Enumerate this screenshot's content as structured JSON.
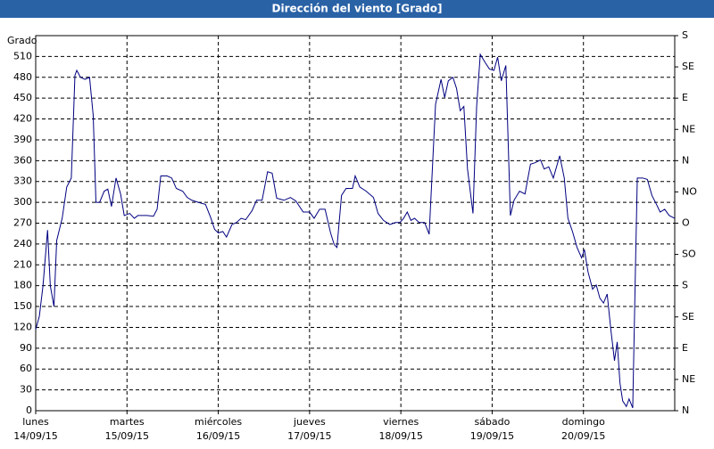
{
  "chart_data": {
    "type": "line",
    "title": "Dirección del viento [Grado]",
    "ylabel": "Grado",
    "color": "#000080",
    "grid": true,
    "xlim": [
      0,
      7
    ],
    "xticks": [
      {
        "value": 0,
        "label": "lunes"
      },
      {
        "value": 1,
        "label": "martes"
      },
      {
        "value": 2,
        "label": "miércoles"
      },
      {
        "value": 3,
        "label": "jueves"
      },
      {
        "value": 4,
        "label": "viernes"
      },
      {
        "value": 5,
        "label": "sábado"
      },
      {
        "value": 6,
        "label": "domingo"
      }
    ],
    "xtick_dates": [
      "14/09/15",
      "15/09/15",
      "16/09/15",
      "17/09/15",
      "18/09/15",
      "19/09/15",
      "20/09/15"
    ],
    "ylim": [
      0,
      540
    ],
    "yticks": [
      0,
      30,
      60,
      90,
      120,
      150,
      180,
      210,
      240,
      270,
      300,
      330,
      360,
      390,
      420,
      450,
      480,
      510
    ],
    "y2lim": [
      0,
      540
    ],
    "y2ticks": [
      {
        "value": 540,
        "label": "S"
      },
      {
        "value": 495,
        "label": "SE"
      },
      {
        "value": 450,
        "label": "E"
      },
      {
        "value": 405,
        "label": "NE"
      },
      {
        "value": 360,
        "label": "N"
      },
      {
        "value": 315,
        "label": "NO"
      },
      {
        "value": 270,
        "label": "O"
      },
      {
        "value": 225,
        "label": "SO"
      },
      {
        "value": 180,
        "label": "S"
      },
      {
        "value": 135,
        "label": "SE"
      },
      {
        "value": 90,
        "label": "E"
      },
      {
        "value": 45,
        "label": "NE"
      },
      {
        "value": 0,
        "label": "N"
      }
    ],
    "x": [
      0,
      0.04,
      0.08,
      0.13,
      0.16,
      0.2,
      0.23,
      0.29,
      0.34,
      0.39,
      0.43,
      0.45,
      0.49,
      0.54,
      0.59,
      0.63,
      0.66,
      0.7,
      0.75,
      0.79,
      0.83,
      0.88,
      0.93,
      0.97,
      1.03,
      1.08,
      1.12,
      1.22,
      1.29,
      1.33,
      1.37,
      1.44,
      1.49,
      1.54,
      1.61,
      1.66,
      1.71,
      1.78,
      1.86,
      1.92,
      1.96,
      2.0,
      2.05,
      2.09,
      2.15,
      2.2,
      2.25,
      2.3,
      2.37,
      2.42,
      2.48,
      2.54,
      2.59,
      2.64,
      2.72,
      2.79,
      2.85,
      2.93,
      3.0,
      3.05,
      3.11,
      3.17,
      3.23,
      3.27,
      3.3,
      3.35,
      3.4,
      3.47,
      3.5,
      3.55,
      3.62,
      3.7,
      3.75,
      3.81,
      3.88,
      3.94,
      3.99,
      4.03,
      4.07,
      4.11,
      4.15,
      4.2,
      4.26,
      4.31,
      4.35,
      4.38,
      4.44,
      4.48,
      4.52,
      4.57,
      4.61,
      4.65,
      4.69,
      4.73,
      4.79,
      4.83,
      4.87,
      4.92,
      4.97,
      5.02,
      5.06,
      5.1,
      5.15,
      5.2,
      5.24,
      5.3,
      5.36,
      5.42,
      5.47,
      5.53,
      5.57,
      5.62,
      5.67,
      5.74,
      5.79,
      5.83,
      5.88,
      5.93,
      5.98,
      6.01,
      6.05,
      6.1,
      6.14,
      6.18,
      6.22,
      6.26,
      6.3,
      6.34,
      6.37,
      6.4,
      6.43,
      6.47,
      6.5,
      6.54,
      6.57,
      6.59,
      6.65,
      6.7,
      6.75,
      6.8,
      6.84,
      6.89,
      6.94,
      7.0
    ],
    "values": [
      117,
      136,
      180,
      260,
      180,
      150,
      245,
      277,
      322,
      335,
      483,
      490,
      480,
      477,
      480,
      425,
      300,
      300,
      316,
      319,
      294,
      335,
      312,
      281,
      284,
      277,
      281,
      281,
      280,
      290,
      338,
      338,
      335,
      320,
      316,
      307,
      303,
      300,
      297,
      277,
      261,
      256,
      258,
      250,
      268,
      271,
      277,
      275,
      288,
      303,
      303,
      344,
      342,
      306,
      303,
      307,
      302,
      286,
      286,
      277,
      290,
      290,
      256,
      239,
      235,
      310,
      320,
      320,
      338,
      322,
      316,
      307,
      284,
      274,
      268,
      271,
      271,
      277,
      286,
      274,
      277,
      271,
      271,
      254,
      361,
      441,
      477,
      451,
      475,
      480,
      464,
      432,
      438,
      348,
      284,
      438,
      513,
      502,
      492,
      490,
      509,
      475,
      497,
      281,
      303,
      316,
      312,
      355,
      357,
      361,
      348,
      351,
      335,
      367,
      335,
      277,
      258,
      235,
      220,
      232,
      200,
      175,
      181,
      162,
      155,
      168,
      117,
      72,
      99,
      40,
      14,
      6,
      17,
      4,
      207,
      335,
      335,
      333,
      310,
      297,
      286,
      290,
      281,
      277
    ]
  }
}
